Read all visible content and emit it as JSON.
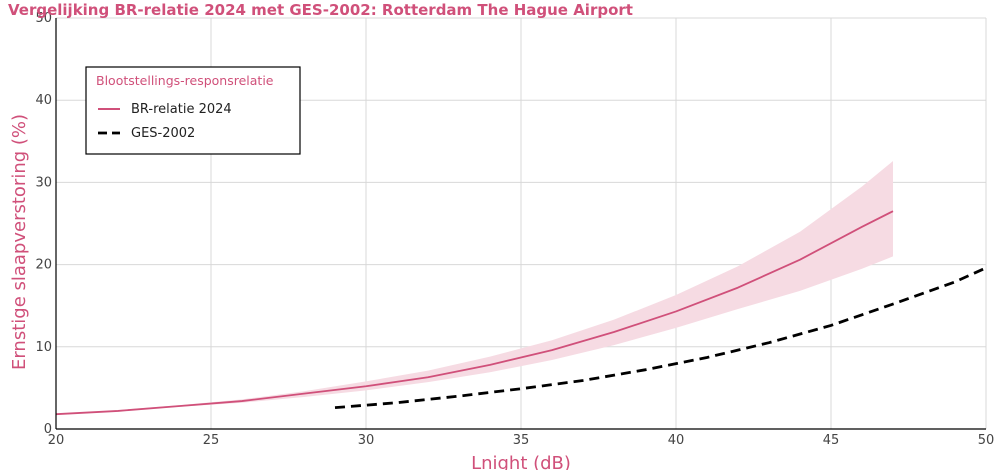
{
  "chart_data": {
    "type": "line",
    "title": "Vergelijking BR-relatie 2024 met GES-2002: Rotterdam The Hague Airport",
    "xlabel": "Lnight (dB)",
    "ylabel": "Ernstige slaapverstoring (%)",
    "xlim": [
      20,
      50
    ],
    "ylim": [
      0,
      50
    ],
    "xticks": [
      20,
      25,
      30,
      35,
      40,
      45,
      50
    ],
    "yticks": [
      0,
      10,
      20,
      30,
      40,
      50
    ],
    "grid": true,
    "legend": {
      "title": "Blootstellings-responsrelatie",
      "position": "top-left"
    },
    "series": [
      {
        "name": "BR-relatie 2024",
        "style": "solid",
        "color": "#d0507a",
        "x": [
          20,
          22,
          24,
          26,
          28,
          30,
          32,
          34,
          36,
          38,
          40,
          42,
          44,
          46,
          47
        ],
        "y": [
          1.8,
          2.2,
          2.8,
          3.4,
          4.3,
          5.2,
          6.3,
          7.8,
          9.6,
          11.8,
          14.3,
          17.2,
          20.6,
          24.6,
          26.5
        ],
        "ci_lower": [
          1.8,
          2.2,
          2.7,
          3.2,
          3.9,
          4.7,
          5.7,
          6.9,
          8.4,
          10.2,
          12.3,
          14.6,
          16.8,
          19.5,
          21.0
        ],
        "ci_upper": [
          1.8,
          2.3,
          2.9,
          3.6,
          4.6,
          5.8,
          7.1,
          8.8,
          10.8,
          13.3,
          16.3,
          19.8,
          24.0,
          29.5,
          32.6
        ]
      },
      {
        "name": "GES-2002",
        "style": "dashed",
        "color": "#000000",
        "x": [
          29,
          31,
          33,
          35,
          37,
          39,
          41,
          43,
          45,
          47,
          49,
          50
        ],
        "y": [
          2.6,
          3.2,
          4.0,
          4.9,
          5.9,
          7.2,
          8.7,
          10.5,
          12.6,
          15.2,
          17.9,
          19.6
        ]
      }
    ],
    "colors": {
      "accent": "#d0507a",
      "band": "#f6dbe3",
      "grid": "#d8d8d8"
    }
  }
}
